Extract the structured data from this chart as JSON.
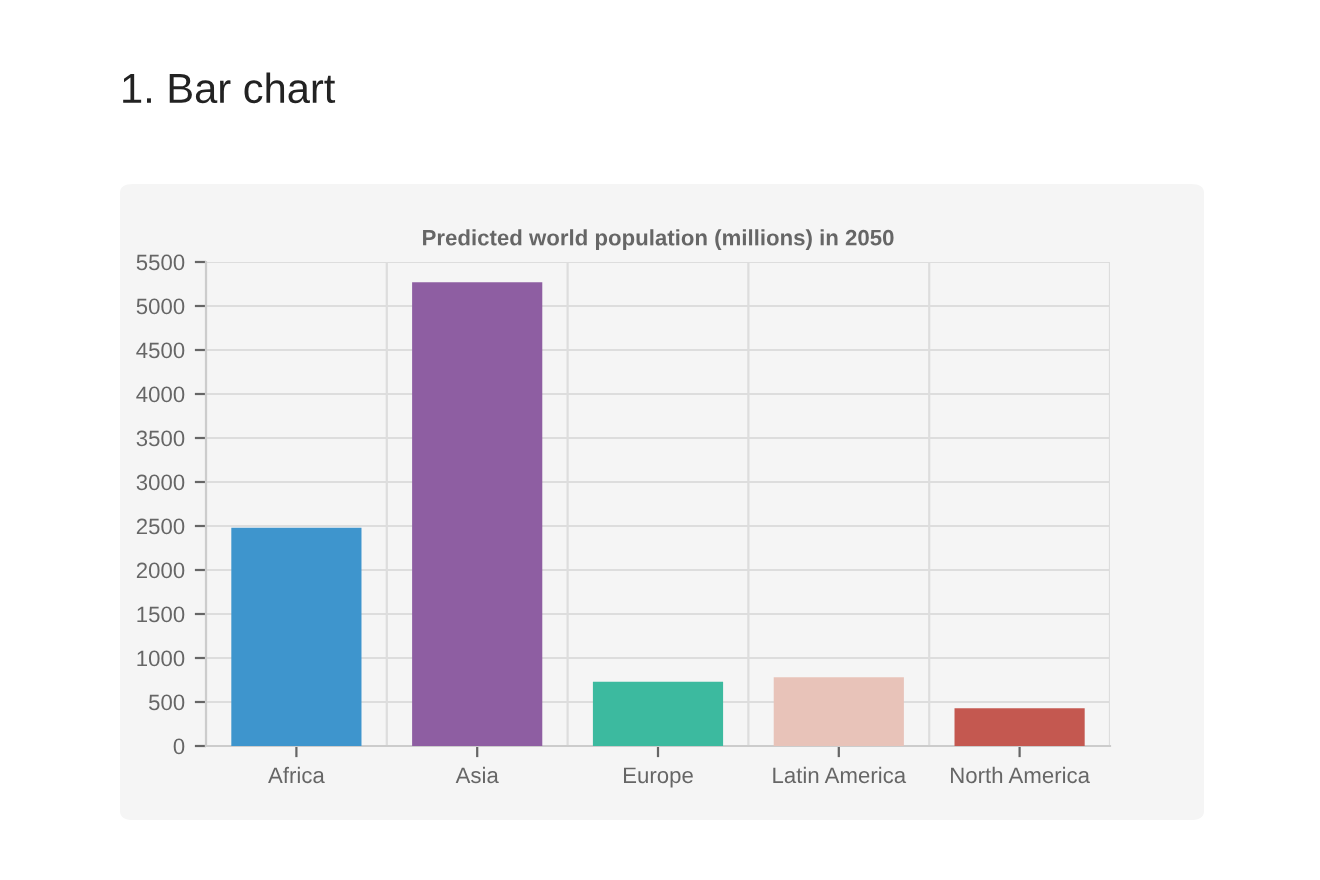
{
  "chart_data": {
    "type": "bar",
    "title": "1. Bar chart",
    "subtitle": "Predicted world population (millions) in 2050",
    "categories": [
      "Africa",
      "Asia",
      "Europe",
      "Latin America",
      "North America"
    ],
    "values": [
      2480,
      5270,
      730,
      780,
      430
    ],
    "colors": [
      "#3e95cd",
      "#8e5ea2",
      "#3cba9f",
      "#e8c3b9",
      "#c45850"
    ],
    "ylim": [
      0,
      5500
    ],
    "yticks": [
      0,
      500,
      1000,
      1500,
      2000,
      2500,
      3000,
      3500,
      4000,
      4500,
      5000,
      5500
    ],
    "grid": true,
    "legend": false
  }
}
